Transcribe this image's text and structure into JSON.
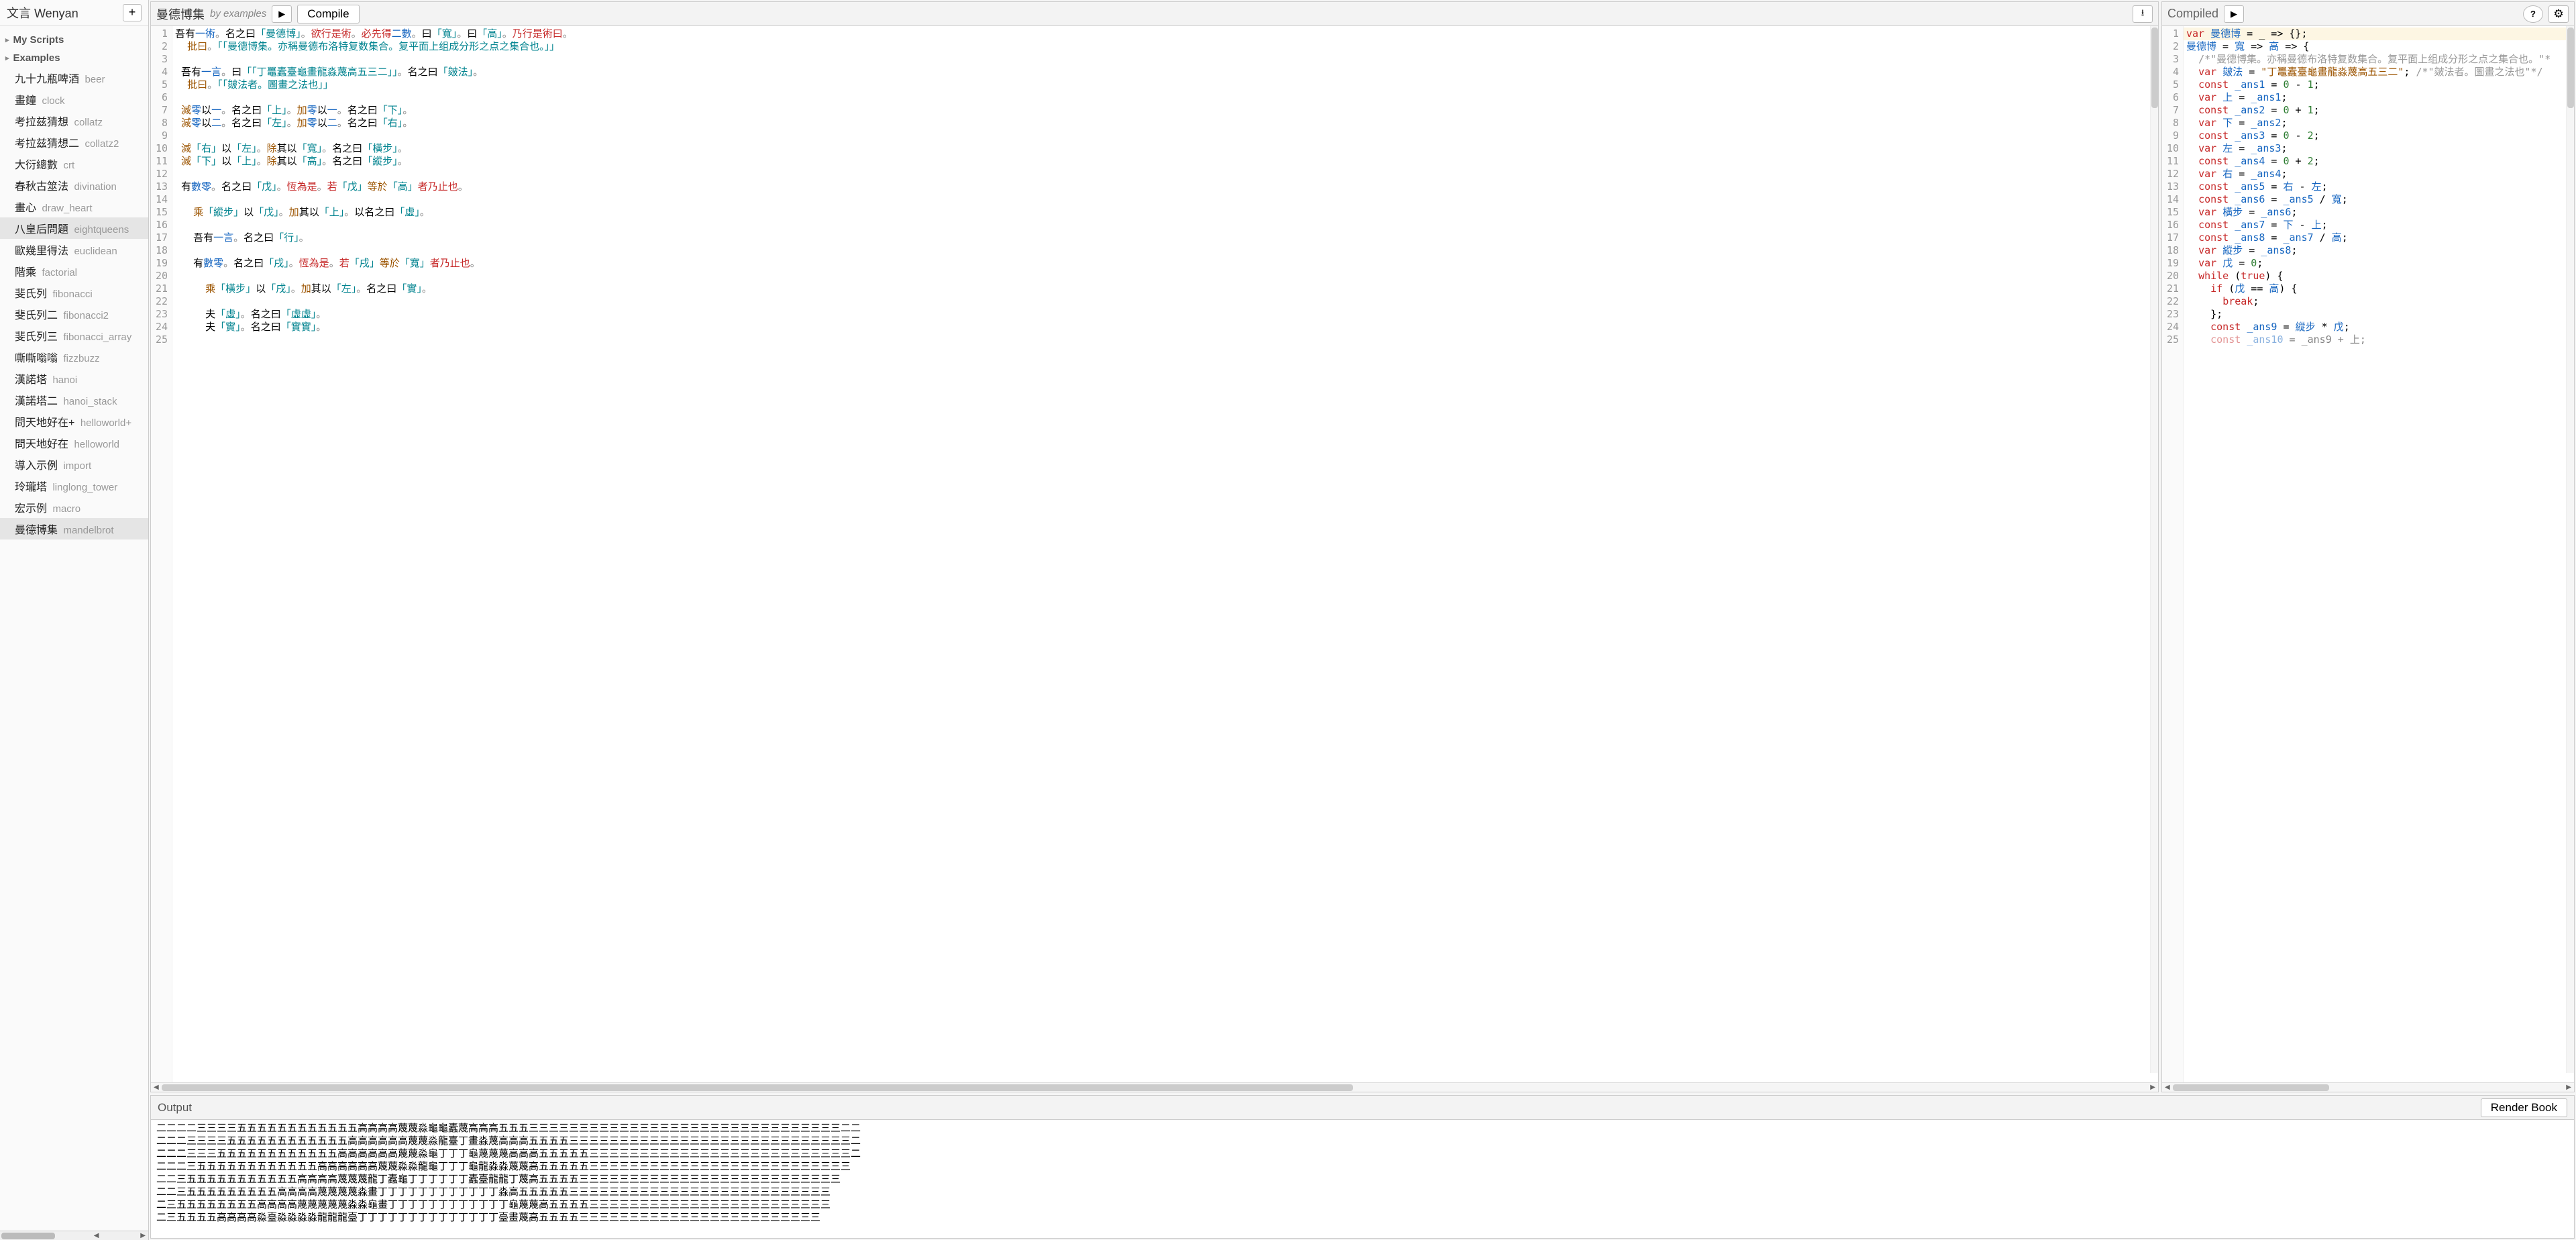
{
  "sidebar": {
    "title": "文言 Wenyan",
    "addLabel": "+",
    "groups": [
      {
        "label": "My Scripts"
      },
      {
        "label": "Examples"
      }
    ],
    "examples": [
      {
        "zh": "九十九瓶啤酒",
        "en": "beer"
      },
      {
        "zh": "畫鐘",
        "en": "clock"
      },
      {
        "zh": "考拉兹猜想",
        "en": "collatz"
      },
      {
        "zh": "考拉兹猜想二",
        "en": "collatz2"
      },
      {
        "zh": "大衍總數",
        "en": "crt"
      },
      {
        "zh": "春秋古筮法",
        "en": "divination"
      },
      {
        "zh": "畫心",
        "en": "draw_heart"
      },
      {
        "zh": "八皇后問題",
        "en": "eightqueens",
        "hover": true
      },
      {
        "zh": "歐幾里得法",
        "en": "euclidean"
      },
      {
        "zh": "階乘",
        "en": "factorial"
      },
      {
        "zh": "斐氏列",
        "en": "fibonacci"
      },
      {
        "zh": "斐氏列二",
        "en": "fibonacci2"
      },
      {
        "zh": "斐氏列三",
        "en": "fibonacci_array"
      },
      {
        "zh": "嘶嘶嗡嗡",
        "en": "fizzbuzz"
      },
      {
        "zh": "漢諾塔",
        "en": "hanoi"
      },
      {
        "zh": "漢諾塔二",
        "en": "hanoi_stack"
      },
      {
        "zh": "問天地好在+",
        "en": "helloworld+"
      },
      {
        "zh": "問天地好在",
        "en": "helloworld"
      },
      {
        "zh": "導入示例",
        "en": "import"
      },
      {
        "zh": "玲瓏塔",
        "en": "linglong_tower"
      },
      {
        "zh": "宏示例",
        "en": "macro"
      },
      {
        "zh": "曼德博集",
        "en": "mandelbrot",
        "active": true
      }
    ]
  },
  "leftEditor": {
    "title": "曼德博集",
    "sub": "by examples",
    "compileLabel": "Compile",
    "playIcon": "▶",
    "downloadIcon": "⭳",
    "lineStart": 1,
    "lineEnd": 25,
    "html": "<span>吾有<span class=c-num>一術</span><span class=c-punc>。</span>名之曰<span class=c-str>「曼德博」</span><span class=c-punc>。</span><span class=c-ctrl>欲行是術</span><span class=c-punc>。</span><span class=c-ctrl>必先得</span><span class=c-num>二數</span><span class=c-punc>。</span>曰<span class=c-str>「寬」</span><span class=c-punc>。</span>曰<span class=c-str>「高」</span><span class=c-punc>。</span><span class=c-ctrl>乃行是術曰</span><span class=c-punc>。</span></span>\n  <span class=c-kw>批曰</span><span class=c-punc>。</span><span class=c-str>「「曼德博集。亦稱曼德布洛特复数集合。复平面上组成分形之点之集合也。」」</span>\n\n <span>吾有<span class=c-num>一言</span><span class=c-punc>。</span>曰<span class=c-str>「「丁鼉蠹臺龜畫龍淼蔑高五三二」」</span><span class=c-punc>。</span>名之曰<span class=c-str>「皴法」</span><span class=c-punc>。</span></span>\n  <span class=c-kw>批曰</span><span class=c-punc>。</span><span class=c-str>「「皴法者。圖畫之法也」」</span>\n\n <span class=c-kw>減</span><span class=c-num>零</span>以<span class=c-num>一</span><span class=c-punc>。</span>名之曰<span class=c-str>「上」</span><span class=c-punc>。</span><span class=c-kw>加</span><span class=c-num>零</span>以<span class=c-num>一</span><span class=c-punc>。</span>名之曰<span class=c-str>「下」</span><span class=c-punc>。</span>\n <span class=c-kw>減</span><span class=c-num>零</span>以<span class=c-num>二</span><span class=c-punc>。</span>名之曰<span class=c-str>「左」</span><span class=c-punc>。</span><span class=c-kw>加</span><span class=c-num>零</span>以<span class=c-num>二</span><span class=c-punc>。</span>名之曰<span class=c-str>「右」</span><span class=c-punc>。</span>\n\n <span class=c-kw>減</span><span class=c-str>「右」</span>以<span class=c-str>「左」</span><span class=c-punc>。</span><span class=c-kw>除</span>其以<span class=c-str>「寬」</span><span class=c-punc>。</span>名之曰<span class=c-str>「橫步」</span><span class=c-punc>。</span>\n <span class=c-kw>減</span><span class=c-str>「下」</span>以<span class=c-str>「上」</span><span class=c-punc>。</span><span class=c-kw>除</span>其以<span class=c-str>「高」</span><span class=c-punc>。</span>名之曰<span class=c-str>「縱步」</span><span class=c-punc>。</span>\n\n 有<span class=c-num>數零</span><span class=c-punc>。</span>名之曰<span class=c-str>「戊」</span><span class=c-punc>。</span><span class=c-ctrl>恆為是</span><span class=c-punc>。</span><span class=c-ctrl>若</span><span class=c-str>「戊」</span><span class=c-kw>等於</span><span class=c-str>「高」</span><span class=c-ctrl>者乃止也</span><span class=c-punc>。</span>\n\n   <span class=c-kw>乘</span><span class=c-str>「縱步」</span>以<span class=c-str>「戊」</span><span class=c-punc>。</span><span class=c-kw>加</span>其以<span class=c-str>「上」</span><span class=c-punc>。</span>以名之曰<span class=c-str>「虛」</span><span class=c-punc>。</span>\n\n   吾有<span class=c-num>一言</span><span class=c-punc>。</span>名之曰<span class=c-str>「行」</span><span class=c-punc>。</span>\n\n   有<span class=c-num>數零</span><span class=c-punc>。</span>名之曰<span class=c-str>「戌」</span><span class=c-punc>。</span><span class=c-ctrl>恆為是</span><span class=c-punc>。</span><span class=c-ctrl>若</span><span class=c-str>「戌」</span><span class=c-kw>等於</span><span class=c-str>「寬」</span><span class=c-ctrl>者乃止也</span><span class=c-punc>。</span>\n\n     <span class=c-kw>乘</span><span class=c-str>「橫步」</span>以<span class=c-str>「戌」</span><span class=c-punc>。</span><span class=c-kw>加</span>其以<span class=c-str>「左」</span><span class=c-punc>。</span>名之曰<span class=c-str>「實」</span><span class=c-punc>。</span>\n\n     夫<span class=c-str>「虛」</span><span class=c-punc>。</span>名之曰<span class=c-str>「虛虛」</span><span class=c-punc>。</span>\n     夫<span class=c-str>「實」</span><span class=c-punc>。</span>名之曰<span class=c-str>「實實」</span><span class=c-punc>。</span>\n"
  },
  "rightEditor": {
    "title": "Compiled",
    "playIcon": "▶",
    "helpIcon": "?",
    "gearIcon": "⚙",
    "lineStart": 1,
    "lineEnd": 25,
    "html": "<span class=hl><span class=j-kw>var</span> <span class=j-id>曼德博</span> = _ =&gt; {};</span><span class=j-id>曼德博</span> = <span class=j-id>寬</span> =&gt; <span class=j-id>高</span> =&gt; {\n  <span class=j-cm>/*\"曼德博集。亦稱曼德布洛特复数集合。复平面上组成分形之点之集合也。\"*</span>\n  <span class=j-kw>var</span> <span class=j-id>皴法</span> = <span class=j-str>\"丁鼉蠹臺龜畫龍淼蔑高五三二\"</span>; <span class=j-cm>/*\"皴法者。圖畫之法也\"*/</span>\n  <span class=j-kw>const</span> <span class=j-id>_ans1</span> = <span class=j-num>0</span> - <span class=j-num>1</span>;\n  <span class=j-kw>var</span> <span class=j-id>上</span> = <span class=j-id>_ans1</span>;\n  <span class=j-kw>const</span> <span class=j-id>_ans2</span> = <span class=j-num>0</span> + <span class=j-num>1</span>;\n  <span class=j-kw>var</span> <span class=j-id>下</span> = <span class=j-id>_ans2</span>;\n  <span class=j-kw>const</span> <span class=j-id>_ans3</span> = <span class=j-num>0</span> - <span class=j-num>2</span>;\n  <span class=j-kw>var</span> <span class=j-id>左</span> = <span class=j-id>_ans3</span>;\n  <span class=j-kw>const</span> <span class=j-id>_ans4</span> = <span class=j-num>0</span> + <span class=j-num>2</span>;\n  <span class=j-kw>var</span> <span class=j-id>右</span> = <span class=j-id>_ans4</span>;\n  <span class=j-kw>const</span> <span class=j-id>_ans5</span> = <span class=j-id>右</span> - <span class=j-id>左</span>;\n  <span class=j-kw>const</span> <span class=j-id>_ans6</span> = <span class=j-id>_ans5</span> / <span class=j-id>寬</span>;\n  <span class=j-kw>var</span> <span class=j-id>橫步</span> = <span class=j-id>_ans6</span>;\n  <span class=j-kw>const</span> <span class=j-id>_ans7</span> = <span class=j-id>下</span> - <span class=j-id>上</span>;\n  <span class=j-kw>const</span> <span class=j-id>_ans8</span> = <span class=j-id>_ans7</span> / <span class=j-id>高</span>;\n  <span class=j-kw>var</span> <span class=j-id>縱步</span> = <span class=j-id>_ans8</span>;\n  <span class=j-kw>var</span> <span class=j-id>戊</span> = <span class=j-num>0</span>;\n  <span class=j-kw>while</span> (<span class=j-kw>true</span>) {\n    <span class=j-kw>if</span> (<span class=j-id>戊</span> == <span class=j-id>高</span>) {\n      <span class=j-kw>break</span>;\n    };\n    <span class=j-kw>const</span> <span class=j-id>_ans9</span> = <span class=j-id>縱步</span> * <span class=j-id>戊</span>;\n    <span class=j-kw style='opacity:.5'>const</span> <span class=j-id style='opacity:.5'>_ans10</span> <span style='opacity:.5'>= _ans9 + 上;</span>"
  },
  "output": {
    "title": "Output",
    "renderLabel": "Render Book",
    "lines": [
      "二二二二三三三三五五五五五五五五五五五五高高高高蔑蔑淼龜龜蠹蔑高高高五五五三三三三三三三三三三三三三三三三三三三三三三三三三三三三三三三二二",
      "二二二三三三三五五五五五五五五五五五五高高高高高高蔑蔑淼龍臺丁畫淼蔑高高高五五五五三三三三三三三三三三三三三三三三三三三三三三三三三三三三二",
      "二二二三三三五五五五五五五五五五五五高高高高高高蔑蔑淼龜丁丁丁龜蔑蔑蔑高高高五五五五五三三三三三三三三三三三三三三三三三三三三三三三三三三二",
      "二二二三五五五五五五五五五五五五高高高高高高蔑蔑淼淼龍龜丁丁丁龜龍淼淼蔑蔑高五五五五五三三三三三三三三三三三三三三三三三三三三三三三三三三",
      "二二三五五五五五五五五五五五高高高高蔑蔑蔑龍丁蠹龜丁丁丁丁丁丁蠹臺龍龍丁蔑高五五五五三三三三三三三三三三三三三三三三三三三三三三三三三三",
      "二二三五五五五五五五五五高高高高蔑蔑蔑蔑淼畫丁丁丁丁丁丁丁丁丁丁丁丁淼高五五五五五三三三三三三三三三三三三三三三三三三三三三三三三三三",
      "二三五五五五五五五五高高高高蔑蔑蔑蔑蔑淼淼龜畫丁丁丁丁丁丁丁丁丁丁丁丁龜蔑蔑高五五五五三三三三三三三三三三三三三三三三三三三三三三三三",
      "二三五五五五高高高高淼臺淼淼淼淼龍龍龍臺丁丁丁丁丁丁丁丁丁丁丁丁丁丁臺畫蔑高五五五五三三三三三三三三三三三三三三三三三三三三三三三三"
    ]
  }
}
